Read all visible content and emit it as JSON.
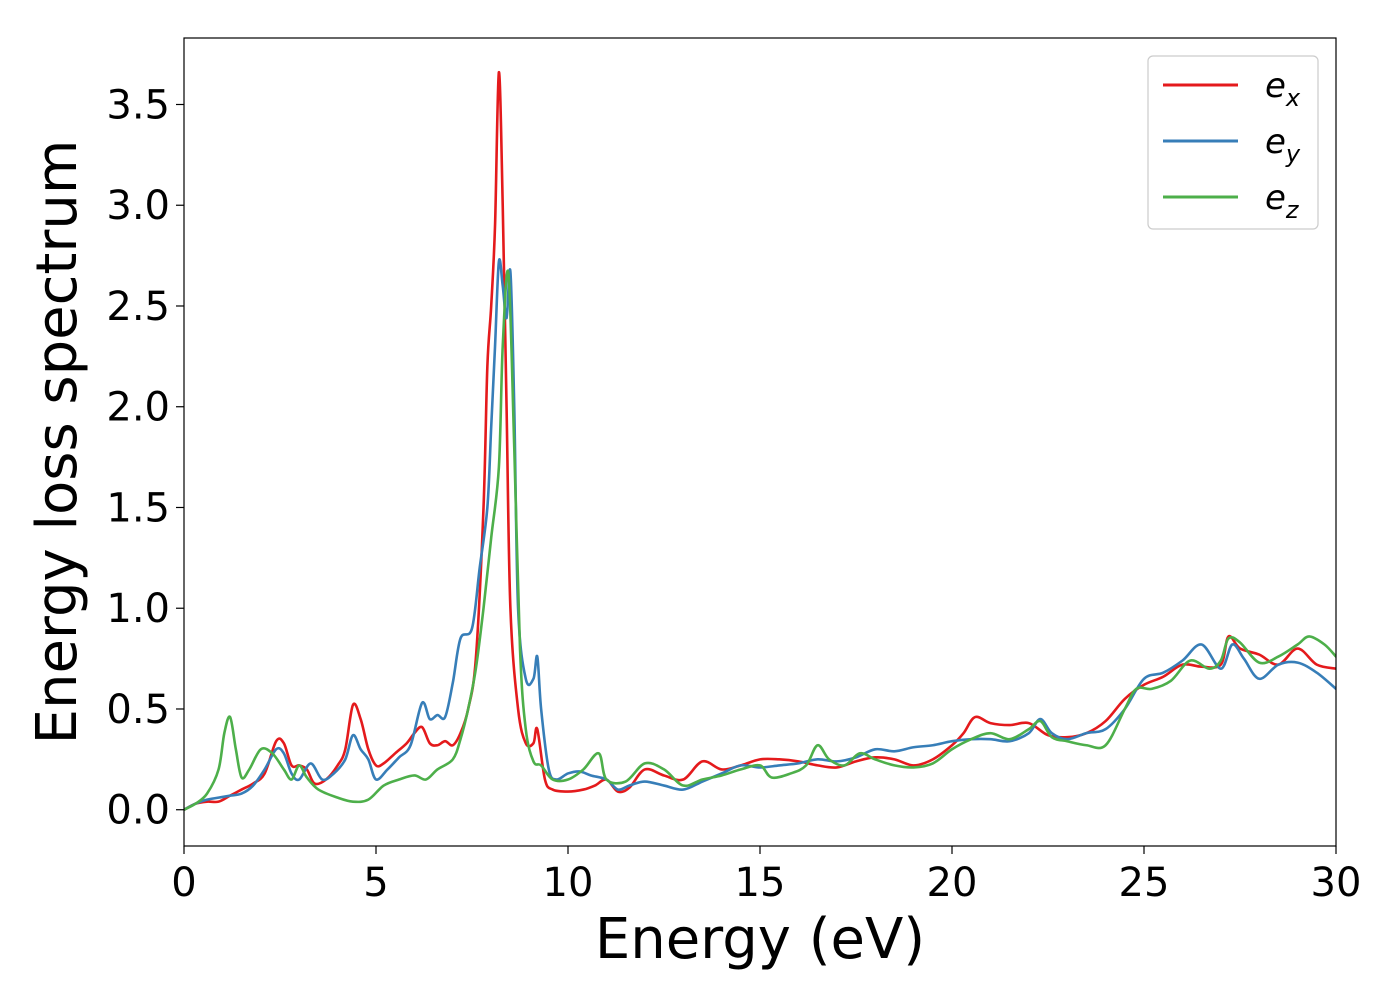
{
  "chart_data": {
    "type": "line",
    "title": "",
    "xlabel": "Energy (eV)",
    "ylabel": "Energy loss spectrum",
    "xlim": [
      0,
      30
    ],
    "ylim": [
      -0.18,
      3.83
    ],
    "xticks": [
      0,
      5,
      10,
      15,
      20,
      25,
      30
    ],
    "yticks": [
      0.0,
      0.5,
      1.0,
      1.5,
      2.0,
      2.5,
      3.0,
      3.5
    ],
    "xtick_labels": [
      "0",
      "5",
      "10",
      "15",
      "20",
      "25",
      "30"
    ],
    "ytick_labels": [
      "0.0",
      "0.5",
      "1.0",
      "1.5",
      "2.0",
      "2.5",
      "3.0",
      "3.5"
    ],
    "grid": false,
    "legend_position": "top-right",
    "series": [
      {
        "name": "e_x",
        "label_base": "e",
        "label_sub": "x",
        "color": "#e41a1c",
        "points": [
          [
            0,
            0.0
          ],
          [
            0.3,
            0.03
          ],
          [
            0.6,
            0.04
          ],
          [
            0.9,
            0.04
          ],
          [
            1.2,
            0.07
          ],
          [
            1.5,
            0.1
          ],
          [
            1.8,
            0.13
          ],
          [
            2.1,
            0.18
          ],
          [
            2.4,
            0.34
          ],
          [
            2.6,
            0.33
          ],
          [
            2.8,
            0.22
          ],
          [
            3.0,
            0.22
          ],
          [
            3.2,
            0.2
          ],
          [
            3.4,
            0.13
          ],
          [
            3.7,
            0.15
          ],
          [
            4.0,
            0.22
          ],
          [
            4.2,
            0.3
          ],
          [
            4.4,
            0.52
          ],
          [
            4.6,
            0.45
          ],
          [
            4.8,
            0.3
          ],
          [
            5.0,
            0.22
          ],
          [
            5.2,
            0.23
          ],
          [
            5.5,
            0.28
          ],
          [
            5.8,
            0.33
          ],
          [
            6.0,
            0.38
          ],
          [
            6.2,
            0.41
          ],
          [
            6.4,
            0.33
          ],
          [
            6.6,
            0.32
          ],
          [
            6.8,
            0.34
          ],
          [
            7.0,
            0.32
          ],
          [
            7.2,
            0.38
          ],
          [
            7.4,
            0.5
          ],
          [
            7.6,
            0.75
          ],
          [
            7.8,
            1.5
          ],
          [
            7.9,
            2.2
          ],
          [
            8.0,
            2.5
          ],
          [
            8.1,
            2.9
          ],
          [
            8.2,
            3.66
          ],
          [
            8.3,
            3.0
          ],
          [
            8.4,
            2.0
          ],
          [
            8.5,
            1.0
          ],
          [
            8.7,
            0.5
          ],
          [
            8.9,
            0.33
          ],
          [
            9.1,
            0.33
          ],
          [
            9.2,
            0.4
          ],
          [
            9.4,
            0.15
          ],
          [
            9.6,
            0.1
          ],
          [
            10.0,
            0.09
          ],
          [
            10.4,
            0.1
          ],
          [
            10.7,
            0.12
          ],
          [
            11.0,
            0.15
          ],
          [
            11.3,
            0.09
          ],
          [
            11.6,
            0.11
          ],
          [
            12.0,
            0.2
          ],
          [
            12.5,
            0.17
          ],
          [
            13.0,
            0.15
          ],
          [
            13.5,
            0.24
          ],
          [
            14.0,
            0.2
          ],
          [
            14.5,
            0.22
          ],
          [
            15.0,
            0.25
          ],
          [
            15.5,
            0.25
          ],
          [
            16.0,
            0.24
          ],
          [
            16.5,
            0.22
          ],
          [
            17.0,
            0.21
          ],
          [
            17.5,
            0.24
          ],
          [
            18.0,
            0.26
          ],
          [
            18.5,
            0.25
          ],
          [
            19.0,
            0.22
          ],
          [
            19.5,
            0.25
          ],
          [
            20.0,
            0.32
          ],
          [
            20.3,
            0.38
          ],
          [
            20.6,
            0.46
          ],
          [
            21.0,
            0.43
          ],
          [
            21.5,
            0.42
          ],
          [
            22.0,
            0.43
          ],
          [
            22.5,
            0.37
          ],
          [
            23.0,
            0.36
          ],
          [
            23.5,
            0.38
          ],
          [
            24.0,
            0.44
          ],
          [
            24.5,
            0.55
          ],
          [
            25.0,
            0.62
          ],
          [
            25.5,
            0.66
          ],
          [
            26.0,
            0.72
          ],
          [
            26.5,
            0.71
          ],
          [
            27.0,
            0.72
          ],
          [
            27.2,
            0.86
          ],
          [
            27.5,
            0.8
          ],
          [
            28.0,
            0.77
          ],
          [
            28.5,
            0.72
          ],
          [
            29.0,
            0.8
          ],
          [
            29.5,
            0.72
          ],
          [
            30.0,
            0.7
          ]
        ]
      },
      {
        "name": "e_y",
        "label_base": "e",
        "label_sub": "y",
        "color": "#377eb8",
        "points": [
          [
            0,
            0.0
          ],
          [
            0.3,
            0.03
          ],
          [
            0.6,
            0.05
          ],
          [
            0.9,
            0.06
          ],
          [
            1.2,
            0.07
          ],
          [
            1.5,
            0.08
          ],
          [
            1.8,
            0.12
          ],
          [
            2.1,
            0.2
          ],
          [
            2.4,
            0.3
          ],
          [
            2.6,
            0.28
          ],
          [
            2.8,
            0.18
          ],
          [
            3.0,
            0.15
          ],
          [
            3.3,
            0.23
          ],
          [
            3.6,
            0.15
          ],
          [
            3.9,
            0.18
          ],
          [
            4.2,
            0.25
          ],
          [
            4.4,
            0.37
          ],
          [
            4.6,
            0.3
          ],
          [
            4.8,
            0.25
          ],
          [
            5.0,
            0.15
          ],
          [
            5.3,
            0.2
          ],
          [
            5.6,
            0.26
          ],
          [
            5.9,
            0.32
          ],
          [
            6.2,
            0.53
          ],
          [
            6.4,
            0.45
          ],
          [
            6.6,
            0.47
          ],
          [
            6.8,
            0.46
          ],
          [
            7.0,
            0.63
          ],
          [
            7.2,
            0.85
          ],
          [
            7.5,
            0.9
          ],
          [
            7.7,
            1.2
          ],
          [
            7.9,
            1.5
          ],
          [
            8.0,
            1.9
          ],
          [
            8.1,
            2.3
          ],
          [
            8.2,
            2.72
          ],
          [
            8.3,
            2.6
          ],
          [
            8.4,
            2.44
          ],
          [
            8.5,
            2.67
          ],
          [
            8.6,
            2.0
          ],
          [
            8.7,
            1.0
          ],
          [
            8.9,
            0.65
          ],
          [
            9.1,
            0.65
          ],
          [
            9.2,
            0.76
          ],
          [
            9.3,
            0.5
          ],
          [
            9.5,
            0.2
          ],
          [
            9.7,
            0.15
          ],
          [
            10.0,
            0.18
          ],
          [
            10.3,
            0.19
          ],
          [
            10.6,
            0.17
          ],
          [
            11.0,
            0.15
          ],
          [
            11.3,
            0.1
          ],
          [
            11.6,
            0.12
          ],
          [
            12.0,
            0.14
          ],
          [
            12.5,
            0.12
          ],
          [
            13.0,
            0.1
          ],
          [
            13.5,
            0.14
          ],
          [
            14.0,
            0.18
          ],
          [
            14.5,
            0.22
          ],
          [
            15.0,
            0.21
          ],
          [
            15.5,
            0.22
          ],
          [
            16.0,
            0.23
          ],
          [
            16.5,
            0.25
          ],
          [
            17.0,
            0.24
          ],
          [
            17.5,
            0.26
          ],
          [
            18.0,
            0.3
          ],
          [
            18.5,
            0.29
          ],
          [
            19.0,
            0.31
          ],
          [
            19.5,
            0.32
          ],
          [
            20.0,
            0.34
          ],
          [
            20.5,
            0.35
          ],
          [
            21.0,
            0.35
          ],
          [
            21.5,
            0.34
          ],
          [
            22.0,
            0.38
          ],
          [
            22.3,
            0.45
          ],
          [
            22.6,
            0.38
          ],
          [
            23.0,
            0.35
          ],
          [
            23.5,
            0.38
          ],
          [
            24.0,
            0.4
          ],
          [
            24.5,
            0.5
          ],
          [
            25.0,
            0.65
          ],
          [
            25.5,
            0.68
          ],
          [
            26.0,
            0.74
          ],
          [
            26.5,
            0.82
          ],
          [
            27.0,
            0.7
          ],
          [
            27.3,
            0.82
          ],
          [
            27.6,
            0.75
          ],
          [
            28.0,
            0.65
          ],
          [
            28.5,
            0.72
          ],
          [
            29.0,
            0.73
          ],
          [
            29.5,
            0.68
          ],
          [
            30.0,
            0.6
          ]
        ]
      },
      {
        "name": "e_z",
        "label_base": "e",
        "label_sub": "z",
        "color": "#4daf4a",
        "points": [
          [
            0,
            0.0
          ],
          [
            0.3,
            0.03
          ],
          [
            0.6,
            0.08
          ],
          [
            0.9,
            0.2
          ],
          [
            1.05,
            0.38
          ],
          [
            1.2,
            0.46
          ],
          [
            1.35,
            0.3
          ],
          [
            1.5,
            0.16
          ],
          [
            1.7,
            0.2
          ],
          [
            2.0,
            0.3
          ],
          [
            2.3,
            0.28
          ],
          [
            2.6,
            0.2
          ],
          [
            2.8,
            0.15
          ],
          [
            3.0,
            0.22
          ],
          [
            3.2,
            0.16
          ],
          [
            3.5,
            0.1
          ],
          [
            4.0,
            0.06
          ],
          [
            4.4,
            0.04
          ],
          [
            4.8,
            0.05
          ],
          [
            5.2,
            0.12
          ],
          [
            5.6,
            0.15
          ],
          [
            6.0,
            0.17
          ],
          [
            6.3,
            0.15
          ],
          [
            6.6,
            0.2
          ],
          [
            7.0,
            0.25
          ],
          [
            7.2,
            0.35
          ],
          [
            7.4,
            0.5
          ],
          [
            7.6,
            0.7
          ],
          [
            7.8,
            1.0
          ],
          [
            8.0,
            1.35
          ],
          [
            8.2,
            1.7
          ],
          [
            8.3,
            2.3
          ],
          [
            8.45,
            2.66
          ],
          [
            8.6,
            1.8
          ],
          [
            8.75,
            0.8
          ],
          [
            8.9,
            0.4
          ],
          [
            9.1,
            0.24
          ],
          [
            9.3,
            0.22
          ],
          [
            9.6,
            0.15
          ],
          [
            10.0,
            0.15
          ],
          [
            10.4,
            0.2
          ],
          [
            10.8,
            0.28
          ],
          [
            11.0,
            0.15
          ],
          [
            11.5,
            0.14
          ],
          [
            12.0,
            0.23
          ],
          [
            12.5,
            0.2
          ],
          [
            13.0,
            0.12
          ],
          [
            13.5,
            0.15
          ],
          [
            14.0,
            0.17
          ],
          [
            14.5,
            0.2
          ],
          [
            15.0,
            0.22
          ],
          [
            15.3,
            0.16
          ],
          [
            15.8,
            0.18
          ],
          [
            16.2,
            0.22
          ],
          [
            16.5,
            0.32
          ],
          [
            16.8,
            0.25
          ],
          [
            17.2,
            0.22
          ],
          [
            17.6,
            0.28
          ],
          [
            18.0,
            0.25
          ],
          [
            18.5,
            0.22
          ],
          [
            19.0,
            0.21
          ],
          [
            19.5,
            0.23
          ],
          [
            20.0,
            0.3
          ],
          [
            20.5,
            0.35
          ],
          [
            21.0,
            0.38
          ],
          [
            21.5,
            0.35
          ],
          [
            22.0,
            0.4
          ],
          [
            22.3,
            0.44
          ],
          [
            22.6,
            0.36
          ],
          [
            23.0,
            0.34
          ],
          [
            23.5,
            0.32
          ],
          [
            24.0,
            0.32
          ],
          [
            24.5,
            0.5
          ],
          [
            24.8,
            0.6
          ],
          [
            25.2,
            0.6
          ],
          [
            25.7,
            0.64
          ],
          [
            26.2,
            0.74
          ],
          [
            26.7,
            0.7
          ],
          [
            27.0,
            0.74
          ],
          [
            27.2,
            0.85
          ],
          [
            27.5,
            0.83
          ],
          [
            28.0,
            0.73
          ],
          [
            28.5,
            0.76
          ],
          [
            29.0,
            0.82
          ],
          [
            29.3,
            0.86
          ],
          [
            29.7,
            0.82
          ],
          [
            30.0,
            0.76
          ]
        ]
      }
    ]
  }
}
